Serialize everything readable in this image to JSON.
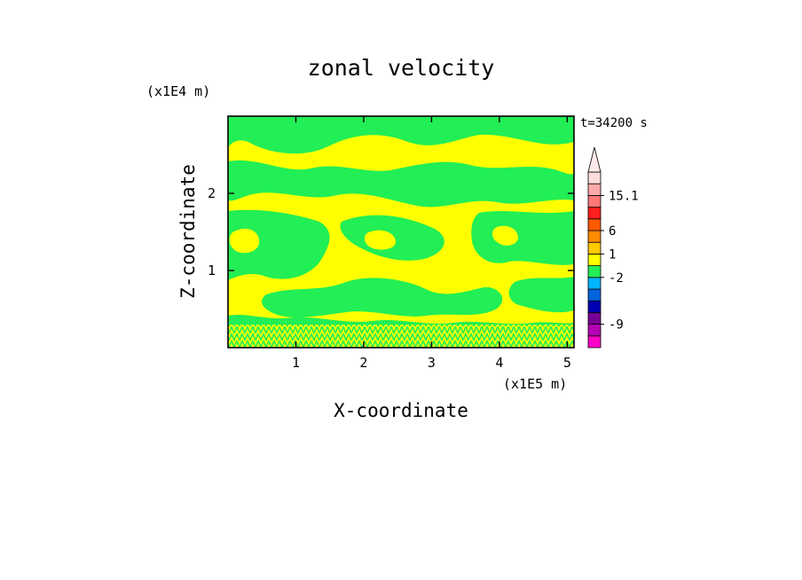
{
  "chart_data": {
    "type": "heatmap",
    "title": "zonal velocity",
    "xlabel": "X-coordinate",
    "ylabel": "Z-coordinate",
    "x_unit": "(x1E5 m)",
    "y_unit": "(x1E4 m)",
    "time_label": "t=34200 s",
    "xlim": [
      0,
      5.1
    ],
    "ylim": [
      0,
      3.0
    ],
    "x_ticks": [
      1,
      2,
      3,
      4,
      5
    ],
    "y_ticks": [
      1,
      2
    ],
    "grid": false,
    "legend": "right",
    "field_levels": {
      "dominant": [
        {
          "range": "0 to 1",
          "color": "#ffff00"
        },
        {
          "range": "-1 to 0",
          "color": "#22ee55"
        }
      ],
      "near_surface_band_z": [
        0,
        0.18
      ]
    },
    "colorbar": {
      "extend_top": true,
      "levels": [
        {
          "color": "#ff00c8"
        },
        {
          "color": "#b400b4"
        },
        {
          "color": "#780096"
        },
        {
          "color": "#0000b4"
        },
        {
          "color": "#0064dc"
        },
        {
          "color": "#00b4ff"
        },
        {
          "color": "#22ee55"
        },
        {
          "color": "#ffff00"
        },
        {
          "color": "#ffc800"
        },
        {
          "color": "#ff8c00"
        },
        {
          "color": "#ff5a00"
        },
        {
          "color": "#ff1e1e"
        },
        {
          "color": "#ff7878"
        },
        {
          "color": "#ffaaaa"
        },
        {
          "color": "#ffdcdc"
        }
      ],
      "labels": [
        {
          "text": "15.1",
          "level": 13
        },
        {
          "text": "6",
          "level": 10
        },
        {
          "text": "1",
          "level": 8
        },
        {
          "text": "-2",
          "level": 6
        },
        {
          "text": "-9",
          "level": 2
        }
      ]
    }
  }
}
